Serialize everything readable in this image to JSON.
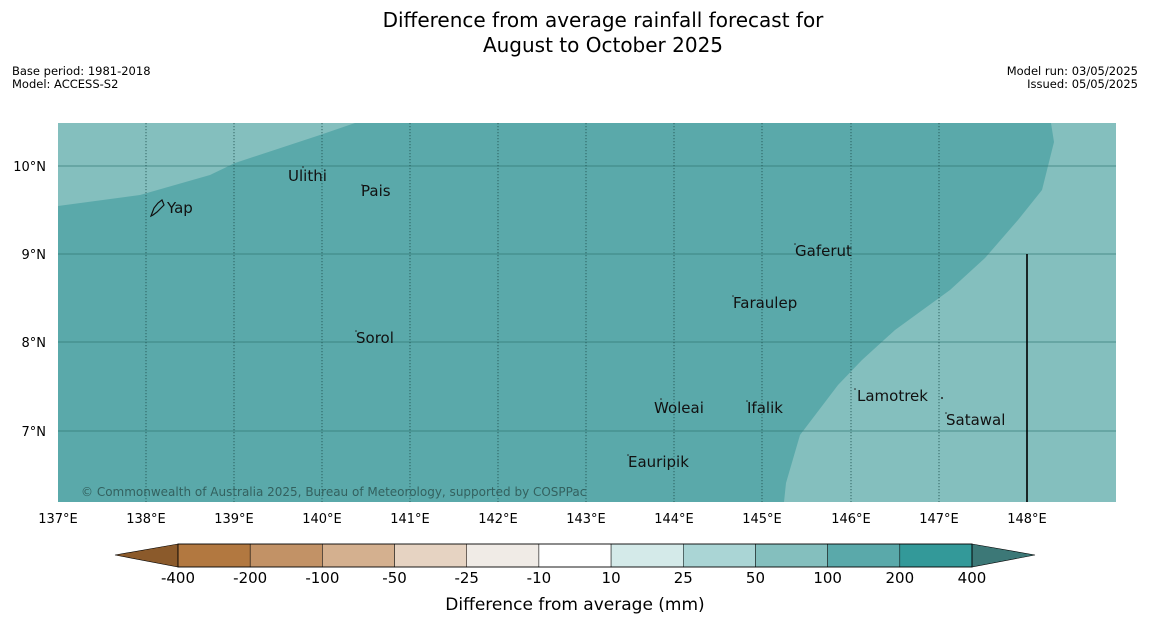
{
  "header": {
    "title_line1": "Difference from average rainfall forecast for",
    "title_line2": "August to October 2025",
    "base_period": "Base period: 1981-2018",
    "model": "Model: ACCESS-S2",
    "model_run": "Model run: 03/05/2025",
    "issued": "Issued: 05/05/2025"
  },
  "map": {
    "lat_labels": [
      "10°N",
      "9°N",
      "8°N",
      "7°N"
    ],
    "lon_labels": [
      "137°E",
      "138°E",
      "139°E",
      "140°E",
      "141°E",
      "142°E",
      "143°E",
      "144°E",
      "145°E",
      "146°E",
      "147°E",
      "148°E"
    ],
    "places": [
      "Ulithi",
      "Pais",
      "Yap",
      "Gaferut",
      "Faraulep",
      "Sorol",
      "Lamotrek",
      "Woleai",
      "Ifalik",
      "Satawal",
      "Eauripik"
    ],
    "copyright": "© Commonwealth of Australia 2025, Bureau of Meteorology, supported by COSPPac",
    "colors": {
      "category_100_200": "#5aa9aa",
      "category_50_100": "#84bfbe"
    }
  },
  "colorbar": {
    "title": "Difference from average (mm)",
    "tick_labels": [
      "-400",
      "-200",
      "-100",
      "-50",
      "-25",
      "-10",
      "10",
      "25",
      "50",
      "100",
      "200",
      "400"
    ],
    "colors": [
      "#8b5a2b",
      "#b27840",
      "#c29266",
      "#d4b08f",
      "#e6d3c2",
      "#f0ebe6",
      "#ffffff",
      "#d4eae9",
      "#aad5d5",
      "#84bfbe",
      "#5aa9aa",
      "#339999",
      "#3c7877"
    ]
  }
}
